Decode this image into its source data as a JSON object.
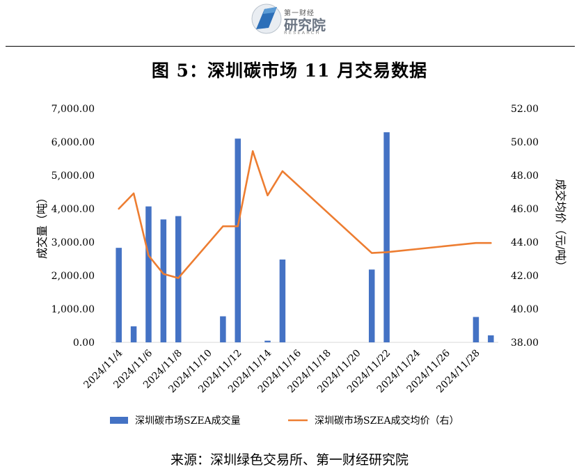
{
  "header": {
    "logo_top_text": "第一财经",
    "logo_main_text": "研究院",
    "logo_sub_text": "RESEARCH"
  },
  "title": "图 5：深圳碳市场 11 月交易数据",
  "source": "来源：深圳绿色交易所、第一财经研究院",
  "colors": {
    "bar": "#4472c4",
    "line": "#ed7d31",
    "axis": "#d9d9d9"
  },
  "chart_data": {
    "type": "bar+line",
    "x": [
      "2024/11/4",
      "2024/11/5",
      "2024/11/6",
      "2024/11/7",
      "2024/11/8",
      "2024/11/9",
      "2024/11/10",
      "2024/11/11",
      "2024/11/12",
      "2024/11/13",
      "2024/11/14",
      "2024/11/15",
      "2024/11/16",
      "2024/11/17",
      "2024/11/18",
      "2024/11/19",
      "2024/11/20",
      "2024/11/21",
      "2024/11/22",
      "2024/11/23",
      "2024/11/24",
      "2024/11/25",
      "2024/11/26",
      "2024/11/27",
      "2024/11/28",
      "2024/11/29"
    ],
    "x_tick_labels": [
      "2024/11/4",
      "2024/11/6",
      "2024/11/8",
      "2024/11/10",
      "2024/11/12",
      "2024/11/14",
      "2024/11/16",
      "2024/11/18",
      "2024/11/20",
      "2024/11/22",
      "2024/11/24",
      "2024/11/26",
      "2024/11/28"
    ],
    "series": [
      {
        "name": "深圳碳市场SZEA成交量",
        "type": "bar",
        "axis": "left",
        "values": [
          2830,
          480,
          4070,
          3680,
          3780,
          null,
          null,
          780,
          6100,
          null,
          50,
          2480,
          null,
          null,
          null,
          null,
          null,
          2180,
          6290,
          null,
          null,
          null,
          null,
          null,
          760,
          210
        ]
      },
      {
        "name": "深圳碳市场SZEA成交均价（右）",
        "type": "line",
        "axis": "right",
        "values": [
          46.0,
          46.92,
          43.2,
          42.1,
          41.85,
          null,
          null,
          44.95,
          44.95,
          49.45,
          46.8,
          48.25,
          null,
          null,
          null,
          null,
          null,
          43.35,
          43.4,
          null,
          null,
          null,
          null,
          null,
          43.95,
          43.95
        ]
      }
    ],
    "y_left": {
      "label": "成交量（吨）",
      "min": 0,
      "max": 7000,
      "step": 1000,
      "tick_labels": [
        "0.00",
        "1,000.00",
        "2,000.00",
        "3,000.00",
        "4,000.00",
        "5,000.00",
        "6,000.00",
        "7,000.00"
      ]
    },
    "y_right": {
      "label": "成交均价（元/吨）",
      "min": 38,
      "max": 52,
      "step": 2,
      "tick_labels": [
        "38.00",
        "40.00",
        "42.00",
        "44.00",
        "46.00",
        "48.00",
        "50.00",
        "52.00"
      ]
    },
    "legend_position": "bottom",
    "grid": false
  }
}
